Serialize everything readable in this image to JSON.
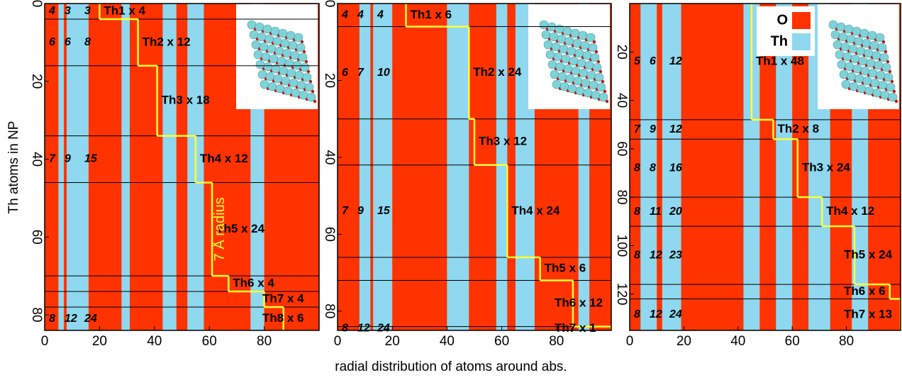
{
  "figure": {
    "xlabel": "radial distribution of atoms around abs.",
    "ylabel": "Th atoms in NP"
  },
  "chart_data": [
    {
      "type": "stripe-map",
      "xlim": [
        0,
        100
      ],
      "xticks": [
        0,
        20,
        40,
        60,
        80
      ],
      "ylim": [
        0,
        84
      ],
      "yticks": [
        0,
        20,
        40,
        60,
        80
      ],
      "y_inverted": true,
      "o_color": "#ff3300",
      "th_color": "#8fd8ef",
      "step_color": "#ffff33",
      "th_bands": [
        [
          5,
          7
        ],
        [
          8,
          16
        ],
        [
          28,
          31
        ],
        [
          43,
          48
        ],
        [
          52,
          58
        ],
        [
          75,
          80
        ]
      ],
      "annotation": "7 Å radius",
      "shells": [
        {
          "label": "Th1 x 4",
          "start": 0,
          "end": 4,
          "edge": 20,
          "counts": [
            4,
            3,
            3
          ]
        },
        {
          "label": "Th2 x 12",
          "start": 4,
          "end": 16,
          "edge": 34,
          "counts": [
            6,
            6,
            8
          ]
        },
        {
          "label": "Th3 x 18",
          "start": 16,
          "end": 34,
          "edge": 41,
          "counts": []
        },
        {
          "label": "Th4 x 12",
          "start": 34,
          "end": 46,
          "edge": 55,
          "counts": [
            7,
            9,
            15
          ]
        },
        {
          "label": "Th5 x 24",
          "start": 46,
          "end": 70,
          "edge": 61,
          "counts": []
        },
        {
          "label": "Th6 x 4",
          "start": 70,
          "end": 74,
          "edge": 67,
          "counts": []
        },
        {
          "label": "Th7 x 4",
          "start": 74,
          "end": 78,
          "edge": 80,
          "counts": []
        },
        {
          "label": "Th8 x 6",
          "start": 78,
          "end": 84,
          "edge": 87,
          "counts": [
            8,
            12,
            24
          ]
        }
      ]
    },
    {
      "type": "stripe-map",
      "xlim": [
        0,
        100
      ],
      "xticks": [
        0,
        20,
        40,
        60,
        80
      ],
      "ylim": [
        0,
        85
      ],
      "yticks": [
        0,
        20,
        40,
        60,
        80
      ],
      "y_inverted": true,
      "o_color": "#ff3300",
      "th_color": "#8fd8ef",
      "step_color": "#ffff33",
      "th_bands": [
        [
          8,
          12
        ],
        [
          13,
          20
        ],
        [
          40,
          48
        ],
        [
          58,
          62
        ],
        [
          65,
          72
        ],
        [
          88,
          92
        ]
      ],
      "shells": [
        {
          "label": "Th1 x 6",
          "start": 0,
          "end": 6,
          "edge": 25,
          "counts": [
            4,
            4,
            4
          ]
        },
        {
          "label": "Th2 x 24",
          "start": 6,
          "end": 30,
          "edge": 48,
          "counts": [
            6,
            7,
            10
          ]
        },
        {
          "label": "Th3 x 12",
          "start": 30,
          "end": 42,
          "edge": 50,
          "counts": []
        },
        {
          "label": "Th4 x 24",
          "start": 42,
          "end": 66,
          "edge": 62,
          "counts": [
            7,
            9,
            15
          ]
        },
        {
          "label": "Th5 x 6",
          "start": 66,
          "end": 72,
          "edge": 74,
          "counts": []
        },
        {
          "label": "Th6 x 12",
          "start": 72,
          "end": 84,
          "edge": 86,
          "counts": []
        },
        {
          "label": "Th7 x 1",
          "start": 84,
          "end": 85,
          "edge": 100,
          "counts": [
            8,
            12,
            24
          ]
        }
      ]
    },
    {
      "type": "stripe-map",
      "xlim": [
        0,
        100
      ],
      "xticks": [
        0,
        20,
        40,
        60,
        80
      ],
      "ylim": [
        0,
        135
      ],
      "yticks": [
        20,
        40,
        60,
        80,
        100,
        120
      ],
      "y_inverted": true,
      "o_color": "#ff3300",
      "th_color": "#8fd8ef",
      "step_color": "#ffff33",
      "th_bands": [
        [
          4,
          10
        ],
        [
          12,
          19
        ],
        [
          42,
          48
        ],
        [
          54,
          60
        ],
        [
          66,
          74
        ],
        [
          82,
          88
        ]
      ],
      "legend": [
        "O",
        "Th"
      ],
      "shells": [
        {
          "label": "Th1 x 48",
          "start": 0,
          "end": 48,
          "edge": 45,
          "counts": [
            5,
            6,
            12
          ]
        },
        {
          "label": "Th2 x 8",
          "start": 48,
          "end": 56,
          "edge": 53,
          "counts": [
            7,
            9,
            12
          ]
        },
        {
          "label": "Th3 x 24",
          "start": 56,
          "end": 80,
          "edge": 62,
          "counts": [
            8,
            8,
            16
          ]
        },
        {
          "label": "Th4 x 12",
          "start": 80,
          "end": 92,
          "edge": 71,
          "counts": [
            8,
            11,
            20
          ]
        },
        {
          "label": "Th5 x 24",
          "start": 92,
          "end": 116,
          "edge": 83,
          "counts": [
            8,
            12,
            23
          ]
        },
        {
          "label": "Th6 x 6",
          "start": 116,
          "end": 122,
          "edge": 96,
          "counts": []
        },
        {
          "label": "Th7 x 13",
          "start": 122,
          "end": 135,
          "edge": 100,
          "counts": [
            8,
            12,
            24
          ]
        }
      ]
    }
  ]
}
